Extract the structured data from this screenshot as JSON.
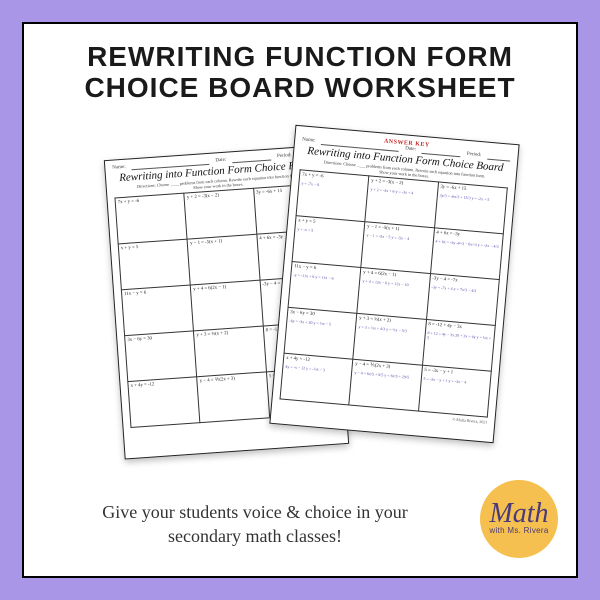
{
  "colors": {
    "outer_bg": "#a996e6",
    "card_bg": "#ffffff",
    "card_border": "#000000",
    "title_color": "#1a1a1a",
    "tagline_color": "#333333",
    "logo_bg": "#f5c04f",
    "logo_text": "#4a3a7a",
    "answer_key_color": "#c62828",
    "handwriting_color": "#5a4aa8"
  },
  "title": {
    "line1": "REWRITING FUNCTION FORM",
    "line2": "CHOICE BOARD WORKSHEET"
  },
  "tagline": {
    "line1": "Give your students voice & choice in your",
    "line2": "secondary math classes!"
  },
  "logo": {
    "main": "Math",
    "sub": "with Ms. Rivera"
  },
  "worksheet": {
    "header_name": "Name:",
    "header_date": "Date:",
    "header_period": "Period:",
    "title": "Rewriting into Function Form Choice Board",
    "directions_1": "Directions: Choose ____ problems from each column. Rewrite each equation into function form.",
    "directions_2": "Show your work in the boxes.",
    "answer_key_label": "ANSWER KEY",
    "copyright": "© Malia Rivera, 2021",
    "grid": [
      [
        "7x + y = -6",
        "y + 2 = -3(x − 2)",
        "3y = -6x + 15"
      ],
      [
        "x + y = 5",
        "y − 1 = -5(x + 1)",
        "4 + 6x = -3y"
      ],
      [
        "11x − y = 6",
        "y + 4 = 6(2x − 1)",
        "-3y − 4 = -7x"
      ],
      [
        "3x − 6y = 30",
        "y + 3 = ⅔(x + 2)",
        "8 = -12 + 4y − 3x"
      ],
      [
        "x + 4y = -12",
        "y − 4 = ⅗(2x + 3)",
        "5 = -3x − y + 1"
      ]
    ],
    "answers": [
      [
        "y = -7x − 6",
        "y + 2 = -3x + 6\ny = -3x + 4",
        "3y/3 = -6x/3 + 15/3\ny = -2x + 5"
      ],
      [
        "y = -x + 5",
        "y − 1 = -5x − 5\ny = -5x − 4",
        "4 + 6x = -3y\n-4/-3 − 6x/-3\ny = -2x − 4/3"
      ],
      [
        "-y = -11x + 6\ny = 11x − 6",
        "y + 4 = 12x − 6\ny = 12x − 10",
        "-3y = -7x + 4\ny = 7x/3 − 4/3"
      ],
      [
        "-6y = -3x + 30\ny = ½x − 5",
        "y + 3 = ⅔x + 4/3\ny = ⅔x − 5/3",
        "8 + 12 = 4y − 3x\n20 + 3x = 4y\ny = ¾x + 5"
      ],
      [
        "4y = -x − 12\ny = -¼x − 3",
        "y − 4 = 6x/5 + 9/5\ny = 6x/5 + 29/5",
        "5 = -3x − y + 1\ny = -3x − 4"
      ]
    ]
  }
}
